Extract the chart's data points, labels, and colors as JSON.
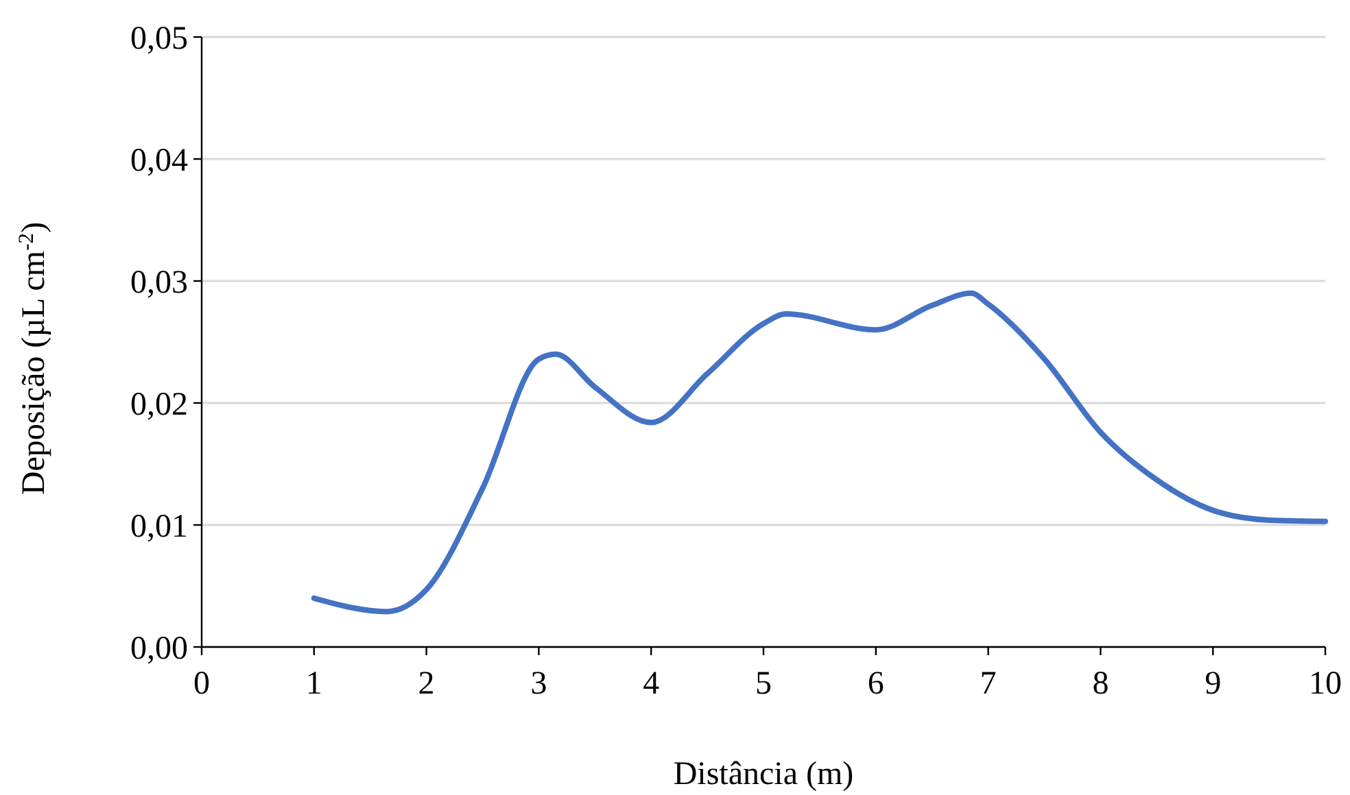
{
  "chart_data": {
    "type": "line",
    "xlabel": "Distância (m)",
    "ylabel": "Deposição (µL cm$^{-2}$)",
    "x": [
      1,
      1.65,
      2,
      2.5,
      3,
      3.15,
      3.5,
      4,
      4.5,
      5,
      5.2,
      6,
      6.5,
      6.85,
      7,
      7.5,
      8,
      8.5,
      9,
      9.5,
      10
    ],
    "series": [
      {
        "color": "#4472c4",
        "values": [
          0.004,
          0.0029,
          0.0047,
          0.013,
          0.0236,
          0.024,
          0.0213,
          0.0184,
          0.0224,
          0.0265,
          0.0273,
          0.026,
          0.028,
          0.029,
          0.0281,
          0.0236,
          0.0176,
          0.0137,
          0.0112,
          0.0104,
          0.0103
        ]
      }
    ],
    "xlim": [
      0,
      10
    ],
    "xticks": [
      0,
      1,
      2,
      3,
      4,
      5,
      6,
      7,
      8,
      9,
      10
    ],
    "ylim": [
      0,
      0.05
    ],
    "yticks": [
      {
        "value": 0,
        "label": "0,00"
      },
      {
        "value": 0.01,
        "label": "0,01"
      },
      {
        "value": 0.02,
        "label": "0,02"
      },
      {
        "value": 0.03,
        "label": "0,03"
      },
      {
        "value": 0.04,
        "label": "0,04"
      },
      {
        "value": 0.05,
        "label": "0,05"
      }
    ],
    "grid": "y",
    "marker": "none",
    "line_style": "solid"
  }
}
